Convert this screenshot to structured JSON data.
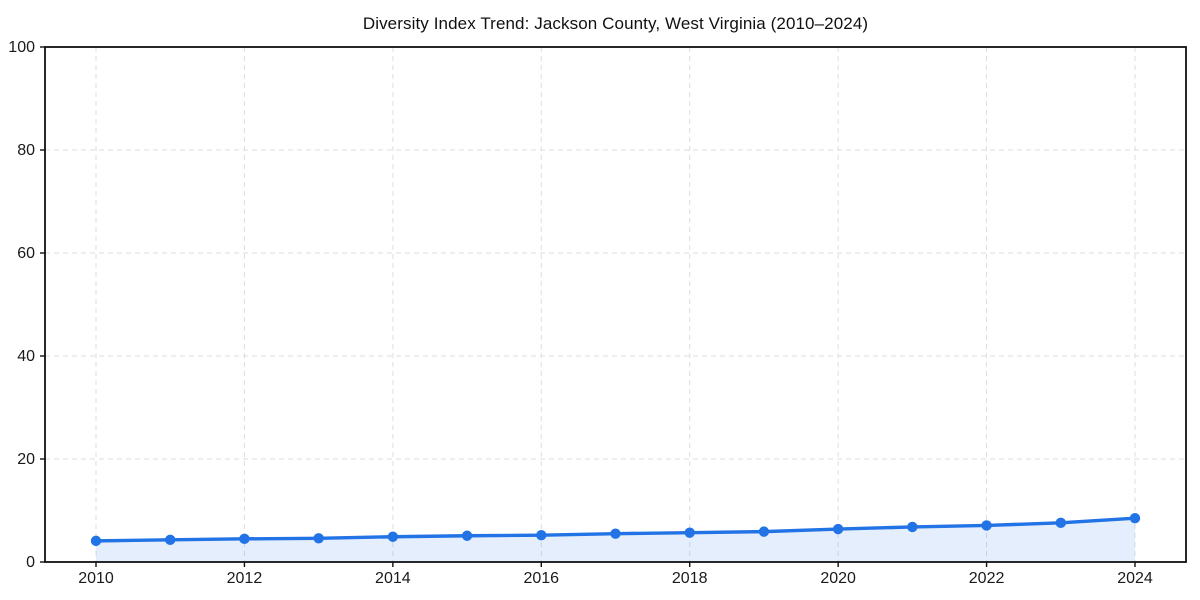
{
  "window": {
    "background": "#ffffff"
  },
  "chart_data": {
    "type": "line",
    "title": "Diversity Index Trend: Jackson County, West Virginia (2010–2024)",
    "x": [
      2010,
      2011,
      2012,
      2013,
      2014,
      2015,
      2016,
      2017,
      2018,
      2019,
      2020,
      2021,
      2022,
      2023,
      2024
    ],
    "series": [
      {
        "name": "Diversity Index",
        "values": [
          4.1,
          4.3,
          4.5,
          4.6,
          4.9,
          5.1,
          5.2,
          5.5,
          5.7,
          5.9,
          6.4,
          6.8,
          7.1,
          7.6,
          8.5
        ]
      }
    ],
    "xlabel": "",
    "ylabel": "",
    "xlim": [
      2009.3,
      2024.7
    ],
    "ylim": [
      0,
      100
    ],
    "xticks": [
      2010,
      2012,
      2014,
      2016,
      2018,
      2020,
      2022,
      2024
    ],
    "yticks": [
      0,
      20,
      40,
      60,
      80,
      100
    ],
    "grid": true,
    "grid_style": "dashed",
    "legend": "none",
    "marker": "circle",
    "colors": {
      "line": "#2273e6",
      "marker": "#2273e6",
      "area_fill": "#2273e6",
      "area_opacity": 0.12,
      "grid": "#dedede",
      "axis": "#111111",
      "text": "#1a1a1a",
      "background": "#ffffff"
    }
  }
}
